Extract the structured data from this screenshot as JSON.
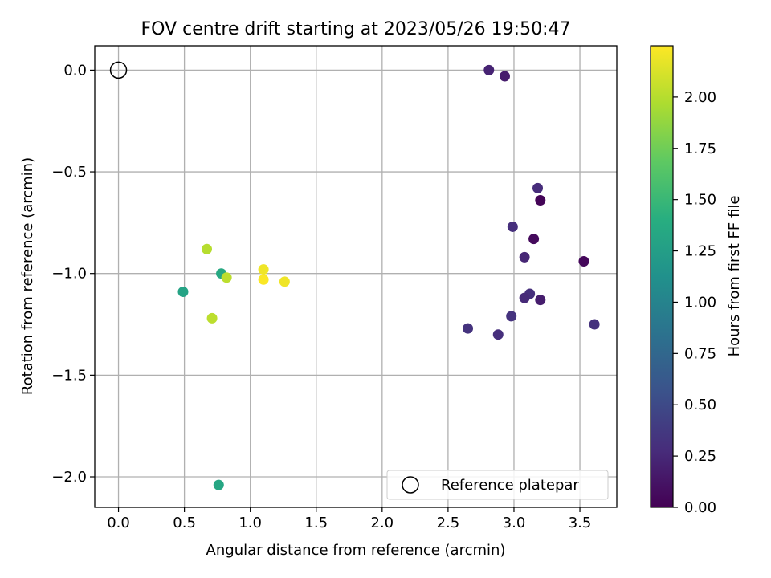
{
  "chart_data": {
    "type": "scatter",
    "title": "FOV centre drift starting at 2023/05/26 19:50:47",
    "xlabel": "Angular distance from reference (arcmin)",
    "ylabel": "Rotation from reference (arcmin)",
    "xlim": [
      -0.18,
      3.78
    ],
    "ylim": [
      -2.15,
      0.12
    ],
    "x_ticks": [
      0.0,
      0.5,
      1.0,
      1.5,
      2.0,
      2.5,
      3.0,
      3.5
    ],
    "x_tick_labels": [
      "0.0",
      "0.5",
      "1.0",
      "1.5",
      "2.0",
      "2.5",
      "3.0",
      "3.5"
    ],
    "y_ticks": [
      0.0,
      -0.5,
      -1.0,
      -1.5,
      -2.0
    ],
    "y_tick_labels": [
      "0.0",
      "−0.5",
      "−1.0",
      "−1.5",
      "−2.0"
    ],
    "grid": true,
    "colormap": "viridis",
    "colorbar": {
      "label": "Hours from first FF file",
      "range": [
        0.0,
        2.25
      ],
      "ticks": [
        0.0,
        0.25,
        0.5,
        0.75,
        1.0,
        1.25,
        1.5,
        1.75,
        2.0
      ],
      "tick_labels": [
        "0.00",
        "0.25",
        "0.50",
        "0.75",
        "1.00",
        "1.25",
        "1.50",
        "1.75",
        "2.00"
      ]
    },
    "reference": {
      "x": 0.0,
      "y": 0.0,
      "label": "Reference platepar",
      "marker": "open-circle"
    },
    "legend_position": "lower-right",
    "points": [
      {
        "x": 2.81,
        "y": 0.0,
        "hours": 0.22
      },
      {
        "x": 2.93,
        "y": -0.03,
        "hours": 0.17
      },
      {
        "x": 3.18,
        "y": -0.58,
        "hours": 0.28
      },
      {
        "x": 3.2,
        "y": -0.64,
        "hours": 0.02
      },
      {
        "x": 2.99,
        "y": -0.77,
        "hours": 0.3
      },
      {
        "x": 3.15,
        "y": -0.83,
        "hours": 0.06
      },
      {
        "x": 3.08,
        "y": -0.92,
        "hours": 0.24
      },
      {
        "x": 3.53,
        "y": -0.94,
        "hours": 0.04
      },
      {
        "x": 3.12,
        "y": -1.1,
        "hours": 0.3
      },
      {
        "x": 3.08,
        "y": -1.12,
        "hours": 0.26
      },
      {
        "x": 3.2,
        "y": -1.13,
        "hours": 0.18
      },
      {
        "x": 2.98,
        "y": -1.21,
        "hours": 0.33
      },
      {
        "x": 3.61,
        "y": -1.25,
        "hours": 0.32
      },
      {
        "x": 2.65,
        "y": -1.27,
        "hours": 0.33
      },
      {
        "x": 2.88,
        "y": -1.3,
        "hours": 0.3
      },
      {
        "x": 0.67,
        "y": -0.88,
        "hours": 2.0
      },
      {
        "x": 0.78,
        "y": -1.0,
        "hours": 1.35
      },
      {
        "x": 0.82,
        "y": -1.02,
        "hours": 2.02
      },
      {
        "x": 1.1,
        "y": -0.98,
        "hours": 2.2
      },
      {
        "x": 1.1,
        "y": -1.03,
        "hours": 2.24
      },
      {
        "x": 1.26,
        "y": -1.04,
        "hours": 2.2
      },
      {
        "x": 0.49,
        "y": -1.09,
        "hours": 1.3
      },
      {
        "x": 0.71,
        "y": -1.22,
        "hours": 2.02
      },
      {
        "x": 0.76,
        "y": -2.04,
        "hours": 1.33
      }
    ]
  }
}
